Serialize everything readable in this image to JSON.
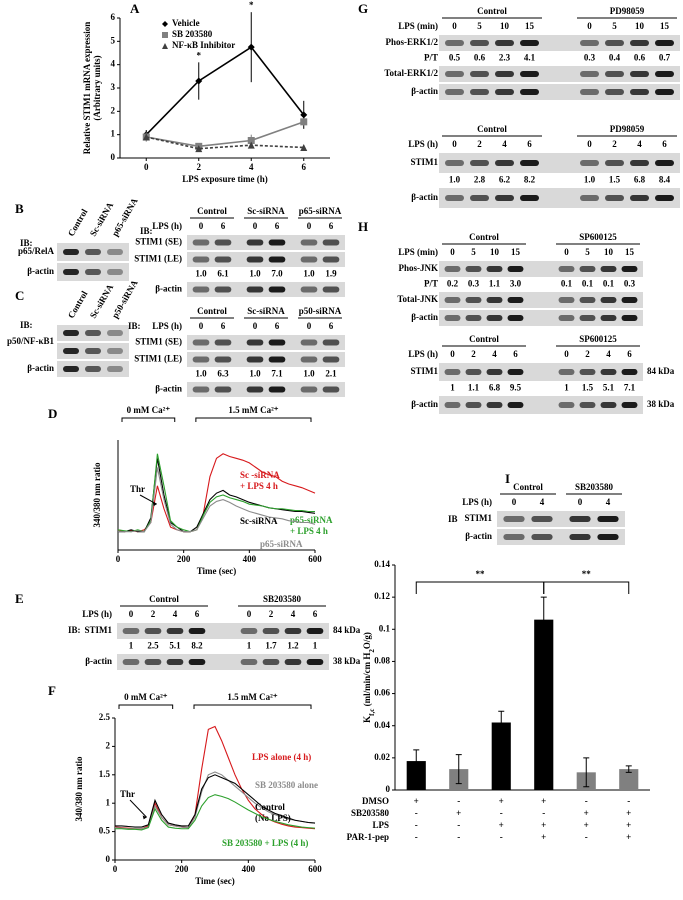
{
  "panel_labels": [
    "A",
    "B",
    "C",
    "D",
    "E",
    "F",
    "G",
    "H",
    "I"
  ],
  "chart_data": [
    {
      "type": "line",
      "x": [
        0,
        2,
        4,
        6
      ],
      "xlim": [
        -1,
        7
      ],
      "xticks": [
        0,
        2,
        4,
        6
      ],
      "ylim": [
        0,
        6
      ],
      "yticks": [
        0,
        1,
        2,
        3,
        4,
        5,
        6
      ],
      "xlabel": "LPS exposure time (h)",
      "ylabel": [
        "Relative STIM1 mRNA expression",
        "(Arbitrary units)"
      ],
      "series": [
        {
          "name": "Vehicle",
          "color": "#000000",
          "marker": "diamond",
          "values": [
            1.0,
            3.3,
            4.75,
            1.85
          ],
          "errors": [
            0.2,
            0.8,
            1.5,
            0.6
          ]
        },
        {
          "name": "SB 203580",
          "color": "#808080",
          "marker": "square",
          "values": [
            0.9,
            0.5,
            0.75,
            1.55
          ],
          "errors": [
            0.2,
            0.1,
            0.25,
            0.15
          ]
        },
        {
          "name": "NF-κB Inhibitor",
          "color": "#404040",
          "marker": "triangle",
          "dash": true,
          "values": [
            0.9,
            0.4,
            0.55,
            0.45
          ],
          "errors": [
            0.15,
            0.1,
            0.1,
            0.1
          ]
        }
      ],
      "annotations": [
        {
          "text": "*",
          "x": 2
        },
        {
          "text": "*",
          "x": 4
        }
      ]
    },
    {
      "type": "line",
      "x": [
        0,
        20,
        40,
        60,
        80,
        100,
        120,
        140,
        160,
        180,
        200,
        220,
        240,
        260,
        280,
        300,
        320,
        340,
        360,
        380,
        400,
        420,
        440,
        460,
        480,
        500,
        520,
        540,
        560,
        580,
        600
      ],
      "xlim": [
        0,
        600
      ],
      "xticks": [
        0,
        200,
        400,
        600
      ],
      "ylim": [
        0.3,
        1.5
      ],
      "xlabel": "Time (sec)",
      "ylabel": "340/380 nm ratio",
      "annotations": [
        "Thr",
        "0 mM Ca²⁺",
        "1.5 mM Ca²⁺"
      ],
      "series": [
        {
          "name": [
            "Sc -siRNA",
            "+ LPS 4 h"
          ],
          "color": "#d7191c",
          "values": [
            0.52,
            0.5,
            0.51,
            0.5,
            0.52,
            0.6,
            1.0,
            0.75,
            0.55,
            0.52,
            0.5,
            0.5,
            0.52,
            0.7,
            1.1,
            1.3,
            1.35,
            1.32,
            1.3,
            1.28,
            1.25,
            1.2,
            1.15,
            1.12,
            1.1,
            1.05,
            1.02,
            1.0,
            0.98,
            0.95,
            0.92
          ]
        },
        {
          "name": [
            "Sc-siRNA"
          ],
          "color": "#000000",
          "values": [
            0.5,
            0.5,
            0.52,
            0.5,
            0.5,
            0.65,
            1.3,
            0.9,
            0.6,
            0.55,
            0.5,
            0.5,
            0.55,
            0.7,
            0.85,
            0.92,
            0.95,
            0.9,
            0.88,
            0.85,
            0.82,
            0.8,
            0.78,
            0.76,
            0.75,
            0.74,
            0.73,
            0.72,
            0.72,
            0.71,
            0.7
          ]
        },
        {
          "name": [
            "p65-siRNA",
            "+ LPS 4 h"
          ],
          "color": "#2ca02c",
          "values": [
            0.52,
            0.51,
            0.5,
            0.52,
            0.5,
            0.62,
            1.35,
            1.0,
            0.62,
            0.55,
            0.52,
            0.5,
            0.52,
            0.68,
            0.82,
            0.88,
            0.9,
            0.87,
            0.85,
            0.83,
            0.8,
            0.79,
            0.78,
            0.76,
            0.75,
            0.75,
            0.74,
            0.73,
            0.73,
            0.72,
            0.72
          ]
        },
        {
          "name": [
            "p65-siRNA"
          ],
          "color": "#8c8c8c",
          "values": [
            0.5,
            0.5,
            0.5,
            0.51,
            0.5,
            0.6,
            1.2,
            0.85,
            0.58,
            0.52,
            0.5,
            0.5,
            0.52,
            0.65,
            0.78,
            0.83,
            0.85,
            0.82,
            0.78,
            0.75,
            0.72,
            0.7,
            0.68,
            0.66,
            0.65,
            0.64,
            0.62,
            0.61,
            0.6,
            0.6,
            0.58
          ]
        }
      ]
    },
    {
      "type": "line",
      "x": [
        0,
        20,
        40,
        60,
        80,
        100,
        120,
        140,
        160,
        180,
        200,
        220,
        240,
        260,
        280,
        300,
        320,
        340,
        360,
        380,
        400,
        420,
        440,
        460,
        480,
        500,
        520,
        540,
        560,
        580,
        600
      ],
      "xlim": [
        0,
        600
      ],
      "xticks": [
        0,
        200,
        400,
        600
      ],
      "ylim": [
        0,
        2.5
      ],
      "yticks": [
        0,
        0.5,
        1,
        1.5,
        2,
        2.5
      ],
      "xlabel": "Time (sec)",
      "ylabel": "340/380 nm ratio",
      "annotations": [
        "Thr",
        "0 mM Ca²⁺",
        "1.5 mM Ca²⁺"
      ],
      "series": [
        {
          "name": [
            "LPS alone (4 h)"
          ],
          "color": "#d7191c",
          "values": [
            0.58,
            0.57,
            0.56,
            0.55,
            0.55,
            0.6,
            1.0,
            0.75,
            0.62,
            0.6,
            0.58,
            0.57,
            0.8,
            1.6,
            2.3,
            2.35,
            2.1,
            1.8,
            1.5,
            1.25,
            1.05,
            0.9,
            0.8,
            0.72,
            0.67,
            0.63,
            0.6,
            0.58,
            0.57,
            0.56,
            0.55
          ]
        },
        {
          "name": [
            "SB 203580 alone"
          ],
          "color": "#8c8c8c",
          "values": [
            0.57,
            0.56,
            0.55,
            0.55,
            0.55,
            0.58,
            0.95,
            0.75,
            0.62,
            0.6,
            0.58,
            0.57,
            0.75,
            1.2,
            1.5,
            1.55,
            1.5,
            1.4,
            1.3,
            1.2,
            1.1,
            1.0,
            0.92,
            0.85,
            0.8,
            0.75,
            0.72,
            0.7,
            0.68,
            0.66,
            0.65
          ]
        },
        {
          "name": [
            "Control",
            "(No LPS)"
          ],
          "color": "#000000",
          "values": [
            0.6,
            0.6,
            0.59,
            0.58,
            0.58,
            0.62,
            1.05,
            0.8,
            0.65,
            0.62,
            0.6,
            0.6,
            0.8,
            1.25,
            1.45,
            1.5,
            1.45,
            1.4,
            1.35,
            1.25,
            1.15,
            1.05,
            0.95,
            0.88,
            0.82,
            0.78,
            0.74,
            0.7,
            0.68,
            0.66,
            0.65
          ]
        },
        {
          "name": [
            "SB  203580 + LPS (4 h)"
          ],
          "color": "#2ca02c",
          "values": [
            0.55,
            0.55,
            0.54,
            0.54,
            0.53,
            0.57,
            0.9,
            0.7,
            0.58,
            0.56,
            0.55,
            0.55,
            0.7,
            0.95,
            1.1,
            1.15,
            1.12,
            1.08,
            1.02,
            0.95,
            0.88,
            0.82,
            0.76,
            0.72,
            0.68,
            0.65,
            0.62,
            0.6,
            0.58,
            0.57,
            0.56
          ]
        }
      ]
    },
    {
      "type": "bar",
      "categories": [
        null,
        null,
        null,
        null,
        null,
        null
      ],
      "values": [
        0.018,
        0.013,
        0.042,
        0.106,
        0.011,
        0.013
      ],
      "errors": [
        0.007,
        0.009,
        0.007,
        0.014,
        0.009,
        0.002
      ],
      "colors": [
        "#000000",
        "#808080",
        "#000000",
        "#000000",
        "#808080",
        "#808080"
      ],
      "ylim": [
        0,
        0.14
      ],
      "yticks": [
        0,
        0.02,
        0.04,
        0.06,
        0.08,
        0.1,
        0.12,
        0.14
      ],
      "ylabel": [
        "K",
        "f,c",
        " (ml/min/cm H",
        "2",
        "O/g)"
      ],
      "annotations": [
        "**",
        "**"
      ],
      "table": [
        {
          "label": "DMSO",
          "marks": [
            "+",
            "-",
            "+",
            "+",
            "-",
            "-"
          ]
        },
        {
          "label": "SB203580",
          "marks": [
            "-",
            "+",
            "-",
            "-",
            "+",
            "+"
          ]
        },
        {
          "label": "LPS",
          "marks": [
            "-",
            "-",
            "+",
            "+",
            "+",
            "+"
          ]
        },
        {
          "label": "PAR-1-pep",
          "marks": [
            "-",
            "-",
            "-",
            "+",
            "-",
            "+"
          ]
        }
      ]
    }
  ],
  "blots": {
    "b_left": {
      "ib": "IB:",
      "lanes": [
        "Control",
        "Sc-siRNA",
        "p65-siRNA"
      ],
      "rows": [
        {
          "label": "p65/RelA"
        },
        {
          "label": "β-actin"
        }
      ]
    },
    "c_left": {
      "ib": "IB:",
      "lanes": [
        "Control",
        "Sc-siRNA",
        "p50-siRNA"
      ],
      "rows": [
        {
          "label": "p50/NF-κB1"
        },
        {
          "label": null
        },
        {
          "label": "β-actin"
        }
      ]
    },
    "b_right": {
      "ib": "IB:",
      "header": "LPS (h)",
      "groups": [
        {
          "name": "Control",
          "lanes": [
            "0",
            "6"
          ]
        },
        {
          "name": "Sc-siRNA",
          "lanes": [
            "0",
            "6"
          ]
        },
        {
          "name": "p65-siRNA",
          "lanes": [
            "0",
            "6"
          ]
        }
      ],
      "rows": [
        {
          "label": "STIM1 (SE)"
        },
        {
          "label": "STIM1 (LE)"
        },
        {
          "values": [
            "1.0",
            "6.1",
            "1.0",
            "7.0",
            "1.0",
            "1.9"
          ]
        },
        {
          "label": "β-actin"
        }
      ]
    },
    "c_right": {
      "ib": "IB:",
      "header": "LPS (h)",
      "groups": [
        {
          "name": "Control",
          "lanes": [
            "0",
            "6"
          ]
        },
        {
          "name": "Sc-siRNA",
          "lanes": [
            "0",
            "6"
          ]
        },
        {
          "name": "p50-siRNA",
          "lanes": [
            "0",
            "6"
          ]
        }
      ],
      "rows": [
        {
          "label": "STIM1 (SE)"
        },
        {
          "label": "STIM1 (LE)"
        },
        {
          "values": [
            "1.0",
            "6.3",
            "1.0",
            "7.1",
            "1.0",
            "2.1"
          ]
        },
        {
          "label": "β-actin"
        }
      ]
    },
    "e": {
      "ib": "IB:",
      "header": "LPS (h)",
      "groups": [
        {
          "name": "Control",
          "lanes": [
            "0",
            "2",
            "4",
            "6"
          ]
        },
        {
          "name": "SB203580",
          "lanes": [
            "0",
            "2",
            "4",
            "6"
          ]
        }
      ],
      "rows": [
        {
          "label": "STIM1",
          "size": "84 kDa"
        },
        {
          "values": [
            "1",
            "2.5",
            "5.1",
            "8.2",
            "1",
            "1.7",
            "1.2",
            "1"
          ]
        },
        {
          "label": "β-actin",
          "size": "38 kDa"
        }
      ]
    },
    "g_top": {
      "header": "LPS (min)",
      "groups": [
        {
          "name": "Control",
          "lanes": [
            "0",
            "5",
            "10",
            "15"
          ]
        },
        {
          "name": "PD98059",
          "lanes": [
            "0",
            "5",
            "10",
            "15"
          ]
        }
      ],
      "rows": [
        {
          "label": "Phos-ERK1/2"
        },
        {
          "label": "P/T",
          "values": [
            "0.5",
            "0.6",
            "2.3",
            "4.1",
            "0.3",
            "0.4",
            "0.6",
            "0.7"
          ]
        },
        {
          "label": "Total-ERK1/2"
        },
        {
          "label": "β-actin"
        }
      ]
    },
    "g_bottom": {
      "header": "LPS (h)",
      "groups": [
        {
          "name": "Control",
          "lanes": [
            "0",
            "2",
            "4",
            "6"
          ]
        },
        {
          "name": "PD98059",
          "lanes": [
            "0",
            "2",
            "4",
            "6"
          ]
        }
      ],
      "rows": [
        {
          "label": "STIM1"
        },
        {
          "values": [
            "1.0",
            "2.8",
            "6.2",
            "8.2",
            "1.0",
            "1.5",
            "6.8",
            "8.4"
          ]
        },
        {
          "label": "β-actin"
        }
      ]
    },
    "h_top": {
      "header": "LPS (min)",
      "groups": [
        {
          "name": "Control",
          "lanes": [
            "0",
            "5",
            "10",
            "15"
          ]
        },
        {
          "name": "SP600125",
          "lanes": [
            "0",
            "5",
            "10",
            "15"
          ]
        }
      ],
      "rows": [
        {
          "label": "Phos-JNK"
        },
        {
          "label": "P/T",
          "values": [
            "0.2",
            "0.3",
            "1.1",
            "3.0",
            "0.1",
            "0.1",
            "0.1",
            "0.3"
          ]
        },
        {
          "label": "Total-JNK"
        },
        {
          "label": "β-actin"
        }
      ]
    },
    "h_bottom": {
      "header": "LPS (h)",
      "groups": [
        {
          "name": "Control",
          "lanes": [
            "0",
            "2",
            "4",
            "6"
          ]
        },
        {
          "name": "SP600125",
          "lanes": [
            "0",
            "2",
            "4",
            "6"
          ]
        }
      ],
      "rows": [
        {
          "label": "STIM1",
          "size": "84 kDa"
        },
        {
          "values": [
            "1",
            "1.1",
            "6.8",
            "9.5",
            "1",
            "1.5",
            "5.1",
            "7.1"
          ]
        },
        {
          "label": "β-actin",
          "size": "38 kDa"
        }
      ]
    },
    "i": {
      "ib": "IB",
      "header": "LPS (h)",
      "groups": [
        {
          "name": "Control",
          "lanes": [
            "0",
            "4"
          ]
        },
        {
          "name": "SB203580",
          "lanes": [
            "0",
            "4"
          ]
        }
      ],
      "rows": [
        {
          "label": "STIM1"
        },
        {
          "label": "β-actin"
        }
      ]
    }
  }
}
